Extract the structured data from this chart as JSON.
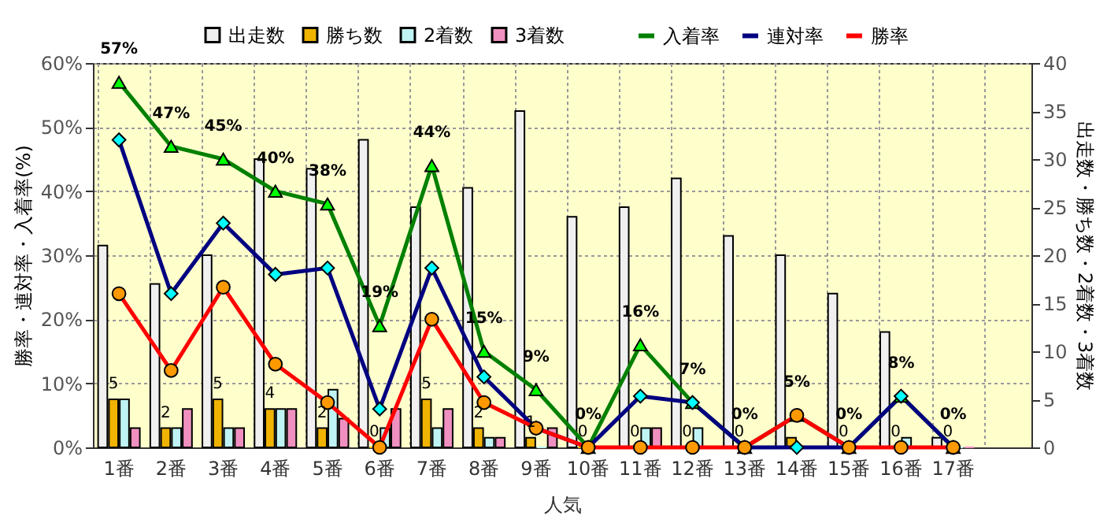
{
  "chart_data": {
    "type": "bar",
    "categories": [
      "1番",
      "2番",
      "3番",
      "4番",
      "5番",
      "6番",
      "7番",
      "8番",
      "9番",
      "10番",
      "11番",
      "12番",
      "13番",
      "14番",
      "15番",
      "16番",
      "17番",
      null
    ],
    "xlabel": "人気",
    "ylabel": "勝率・連対率・入着率(%)",
    "y2label": "出走数・勝ち数・2着数・3着数",
    "ylim": [
      0,
      60
    ],
    "yticks": [
      {
        "value": 0,
        "label": "0%"
      },
      {
        "value": 10,
        "label": "10%"
      },
      {
        "value": 20,
        "label": "20%"
      },
      {
        "value": 30,
        "label": "30%"
      },
      {
        "value": 40,
        "label": "40%"
      },
      {
        "value": 50,
        "label": "50%"
      },
      {
        "value": 60,
        "label": "60%"
      }
    ],
    "y2lim": [
      0,
      40
    ],
    "y2ticks": [
      0,
      5,
      10,
      15,
      20,
      25,
      30,
      35,
      40
    ],
    "grid": true,
    "legend": "top",
    "series": [
      {
        "name": "出走数",
        "axis": "y2",
        "color": "#f0f0f0",
        "values": [
          21,
          17,
          20,
          30,
          29,
          32,
          25,
          27,
          35,
          24,
          25,
          28,
          22,
          20,
          16,
          12,
          1,
          null
        ]
      },
      {
        "name": "勝ち数",
        "axis": "y2",
        "color": "#f0b400",
        "values": [
          5,
          2,
          5,
          4,
          2,
          0,
          5,
          2,
          1,
          0,
          0,
          0,
          0,
          1,
          0,
          0,
          0,
          null
        ],
        "value_labels": [
          "5",
          "2",
          "5",
          "4",
          "2",
          "0",
          "5",
          "2",
          "1",
          "0",
          "0",
          "0",
          "0",
          null,
          "0",
          "0",
          "0",
          null
        ]
      },
      {
        "name": "2着数",
        "axis": "y2",
        "color": "#c0f4f4",
        "values": [
          5,
          2,
          2,
          4,
          6,
          2,
          2,
          1,
          0,
          0,
          2,
          2,
          0,
          0,
          0,
          1,
          0,
          null
        ]
      },
      {
        "name": "3着数",
        "axis": "y2",
        "color": "#f090c0",
        "values": [
          2,
          4,
          2,
          4,
          3,
          4,
          4,
          1,
          2,
          0,
          2,
          0,
          0,
          0,
          0,
          0,
          0,
          null
        ]
      },
      {
        "name": "入着率",
        "type": "line",
        "color": "#008000",
        "marker": "triangle",
        "values": [
          57,
          47,
          45,
          40,
          38,
          19,
          44,
          15,
          9,
          0,
          16,
          7,
          0,
          5,
          0,
          8,
          0,
          null
        ],
        "value_labels": [
          "57%",
          "47%",
          "45%",
          "40%",
          "38%",
          "19%",
          "44%",
          "15%",
          "9%",
          "0%",
          "16%",
          "7%",
          "0%",
          "5%",
          "0%",
          "8%",
          "0%",
          null
        ]
      },
      {
        "name": "連対率",
        "type": "line",
        "color": "#000080",
        "marker": "diamond",
        "values": [
          48,
          24,
          35,
          27,
          28,
          6,
          28,
          11,
          3,
          0,
          8,
          7,
          0,
          0,
          0,
          8,
          0,
          null
        ]
      },
      {
        "name": "勝率",
        "type": "line",
        "color": "#ff0000",
        "marker": "circle",
        "values": [
          24,
          12,
          25,
          13,
          7,
          0,
          20,
          7,
          3,
          0,
          0,
          0,
          0,
          5,
          0,
          0,
          0,
          null
        ]
      }
    ]
  }
}
